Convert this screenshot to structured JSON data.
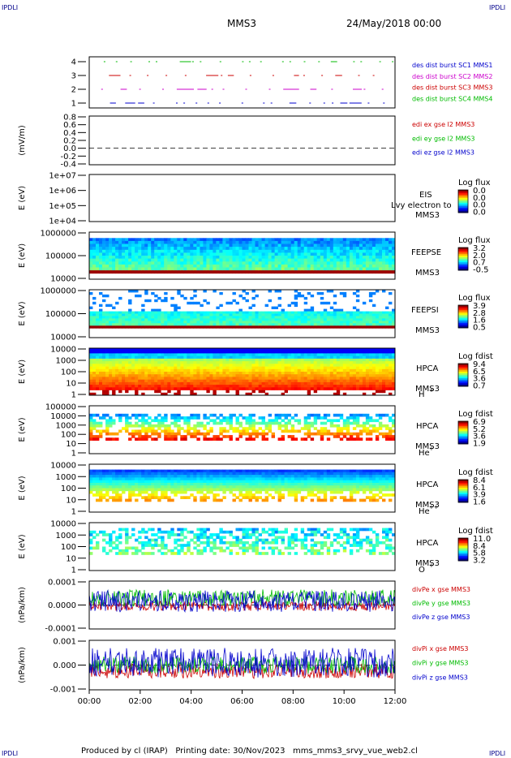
{
  "header": {
    "corner_label": "IPDLI",
    "spacecraft": "MMS3",
    "date": "24/May/2018 00:00"
  },
  "footer": {
    "text": "Produced by cl (IRAP)   Printing date: 30/Nov/2023   mms_mms3_srvy_vue_web2.cl"
  },
  "chart_data": [
    {
      "type": "line",
      "panel": "burst",
      "yticks": [
        "4",
        "3",
        "2",
        "1"
      ],
      "legend": [
        {
          "label": "des dist burst SC1 MMS1",
          "color": "#0000cc"
        },
        {
          "label": "des dist burst SC2 MMS2",
          "color": "#cc00cc"
        },
        {
          "label": "des dist burst SC3 MMS3",
          "color": "#cc0000"
        },
        {
          "label": "des dist burst SC4 MMS4",
          "color": "#00bb00"
        }
      ]
    },
    {
      "type": "line",
      "panel": "edi",
      "ylabel": "(mV/m)",
      "yticks": [
        "0.8",
        "0.6",
        "0.4",
        "0.2",
        "0.0",
        "-0.2",
        "-0.4"
      ],
      "legend": [
        {
          "label": "edi ex gse l2 MMS3",
          "color": "#cc0000"
        },
        {
          "label": "edi ey gse l2 MMS3",
          "color": "#00bb00"
        },
        {
          "label": "edi ez gse l2 MMS3",
          "color": "#0000cc"
        }
      ]
    },
    {
      "type": "heatmap",
      "panel": "eis",
      "ylabel": "E (eV)",
      "yticks": [
        "1e+07",
        "1e+06",
        "1e+05",
        "1e+04"
      ],
      "instrument": "EIS",
      "spacecraft": "MMS3",
      "overlay_text": "Lvy electron to",
      "colorbar": {
        "title": "Log flux",
        "ticks": [
          "0.0",
          "0.0",
          "0.0",
          "0.0"
        ]
      }
    },
    {
      "type": "heatmap",
      "panel": "feeps_e",
      "ylabel": "E (eV)",
      "yticks": [
        "1000000",
        "100000",
        "10000"
      ],
      "instrument": "FEEPSE",
      "spacecraft": "MMS3",
      "colorbar": {
        "title": "Log flux",
        "ticks": [
          "3.2",
          "2.0",
          "0.7",
          "-0.5"
        ]
      }
    },
    {
      "type": "heatmap",
      "panel": "feeps_i",
      "ylabel": "E (eV)",
      "yticks": [
        "1000000",
        "100000",
        "10000"
      ],
      "instrument": "FEEPSI",
      "spacecraft": "MMS3",
      "colorbar": {
        "title": "Log flux",
        "ticks": [
          "3.9",
          "2.8",
          "1.6",
          "0.5"
        ]
      }
    },
    {
      "type": "heatmap",
      "panel": "hpca_h",
      "ylabel": "E (eV)",
      "yticks": [
        "10000",
        "1000",
        "100",
        "10",
        "1"
      ],
      "instrument": "HPCA",
      "spacecraft": "MMS3",
      "species": "H",
      "charge": "+",
      "colorbar": {
        "title": "Log fdist",
        "ticks": [
          "9.4",
          "6.5",
          "3.6",
          "0.7"
        ]
      }
    },
    {
      "type": "heatmap",
      "panel": "hpca_he1",
      "ylabel": "E (eV)",
      "yticks": [
        "100000",
        "10000",
        "1000",
        "100",
        "10",
        "1"
      ],
      "instrument": "HPCA",
      "spacecraft": "MMS3",
      "species": "He",
      "charge": "+",
      "colorbar": {
        "title": "Log fdist",
        "ticks": [
          "6.9",
          "5.2",
          "3.6",
          "1.9"
        ]
      }
    },
    {
      "type": "heatmap",
      "panel": "hpca_he2",
      "ylabel": "E (eV)",
      "yticks": [
        "10000",
        "1000",
        "100",
        "10",
        "1"
      ],
      "instrument": "HPCA",
      "spacecraft": "MMS3",
      "species": "He",
      "charge": "++",
      "colorbar": {
        "title": "Log fdist",
        "ticks": [
          "8.4",
          "6.1",
          "3.9",
          "1.6"
        ]
      }
    },
    {
      "type": "heatmap",
      "panel": "hpca_o",
      "ylabel": "E (eV)",
      "yticks": [
        "10000",
        "1000",
        "100",
        "10",
        "1"
      ],
      "instrument": "HPCA",
      "spacecraft": "MMS3",
      "species": "O",
      "charge": "+",
      "colorbar": {
        "title": "Log fdist",
        "ticks": [
          "11.0",
          "8.4",
          "5.8",
          "3.2"
        ]
      }
    },
    {
      "type": "line",
      "panel": "divpe",
      "ylabel": "(nPa/km)",
      "yticks": [
        "0.0001",
        "0.0000",
        "-0.0001"
      ],
      "legend": [
        {
          "label": "divPe x gse MMS3",
          "color": "#cc0000"
        },
        {
          "label": "divPe y gse MMS3",
          "color": "#00bb00"
        },
        {
          "label": "divPe z gse MMS3",
          "color": "#0000cc"
        }
      ]
    },
    {
      "type": "line",
      "panel": "divpi",
      "ylabel": "(nPa/km)",
      "yticks": [
        "0.001",
        "0.000",
        "-0.001"
      ],
      "legend": [
        {
          "label": "divPi x gse MMS3",
          "color": "#cc0000"
        },
        {
          "label": "divPi y gse MMS3",
          "color": "#00bb00"
        },
        {
          "label": "divPi z gse MMS3",
          "color": "#0000cc"
        }
      ]
    }
  ],
  "time_axis": {
    "ticks": [
      "00:00",
      "02:00",
      "04:00",
      "06:00",
      "08:00",
      "10:00",
      "12:00"
    ]
  }
}
